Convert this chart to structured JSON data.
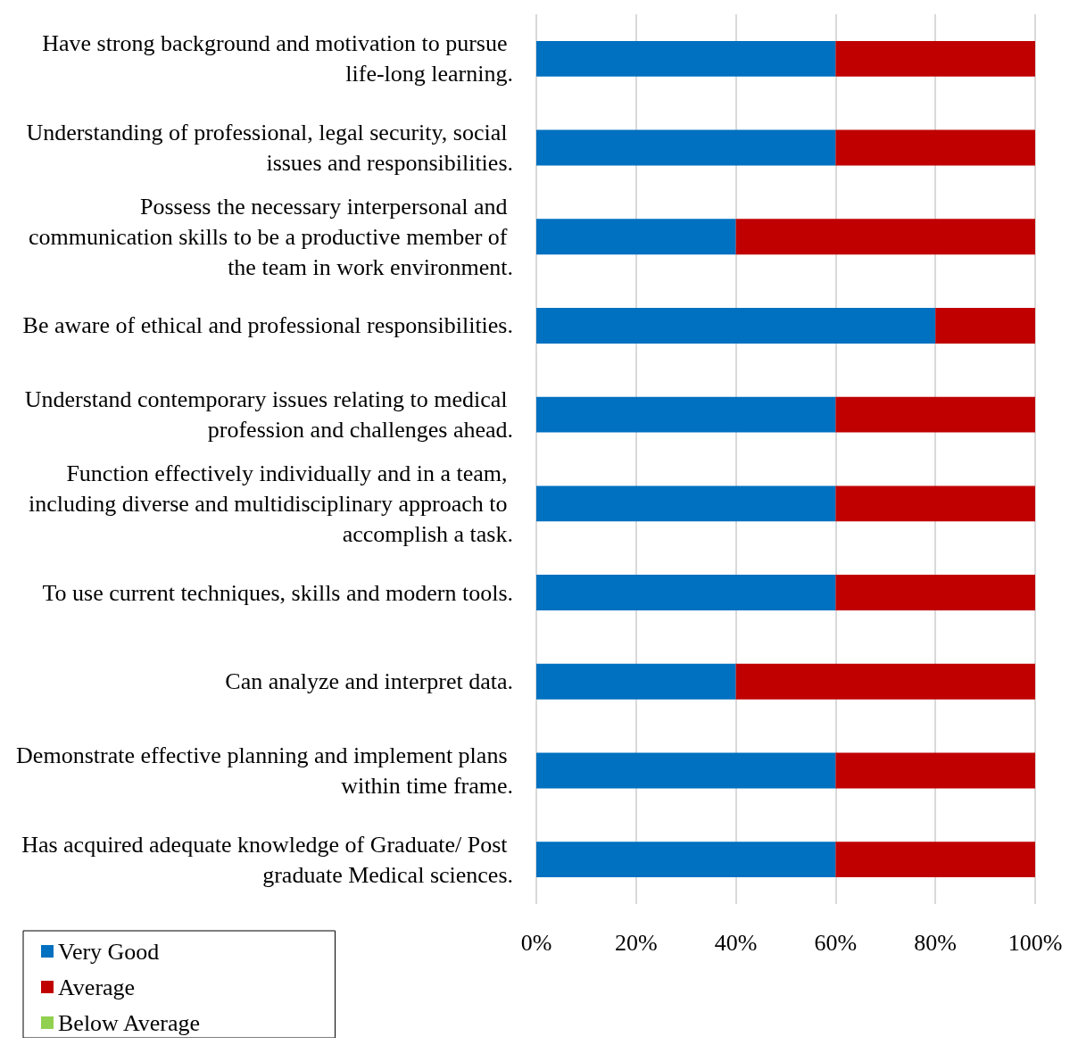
{
  "chart_data": {
    "type": "bar",
    "orientation": "horizontal",
    "stacked": true,
    "categories": [
      "Have strong background and motivation to pursue life-long learning.",
      "Understanding of professional, legal security, social issues and responsibilities.",
      "Possess the necessary interpersonal and communication skills to be a productive member of the team in work environment.",
      "Be aware of ethical and professional responsibilities.",
      "Understand contemporary issues relating to medical profession and challenges ahead.",
      "Function effectively individually and in a team, including diverse and multidisciplinary approach to accomplish a task.",
      "To use current techniques, skills and modern tools.",
      "Can analyze and interpret data.",
      "Demonstrate effective planning and implement plans within time frame.",
      "Has acquired adequate knowledge of Graduate/ Post graduate Medical sciences."
    ],
    "series": [
      {
        "name": "Very Good",
        "color": "#0070c0",
        "values": [
          60,
          60,
          40,
          80,
          60,
          60,
          60,
          40,
          60,
          60
        ]
      },
      {
        "name": "Average",
        "color": "#c00000",
        "values": [
          40,
          40,
          60,
          20,
          40,
          40,
          40,
          60,
          40,
          40
        ]
      },
      {
        "name": "Below Average",
        "color": "#92d050",
        "values": [
          0,
          0,
          0,
          0,
          0,
          0,
          0,
          0,
          0,
          0
        ]
      }
    ],
    "xlim": [
      0,
      100
    ],
    "xticks": [
      {
        "value": 0,
        "label": "0%"
      },
      {
        "value": 20,
        "label": "20%"
      },
      {
        "value": 40,
        "label": "40%"
      },
      {
        "value": 60,
        "label": "60%"
      },
      {
        "value": 80,
        "label": "80%"
      },
      {
        "value": 100,
        "label": "100%"
      }
    ],
    "grid": "x",
    "legend": "bottom left"
  }
}
